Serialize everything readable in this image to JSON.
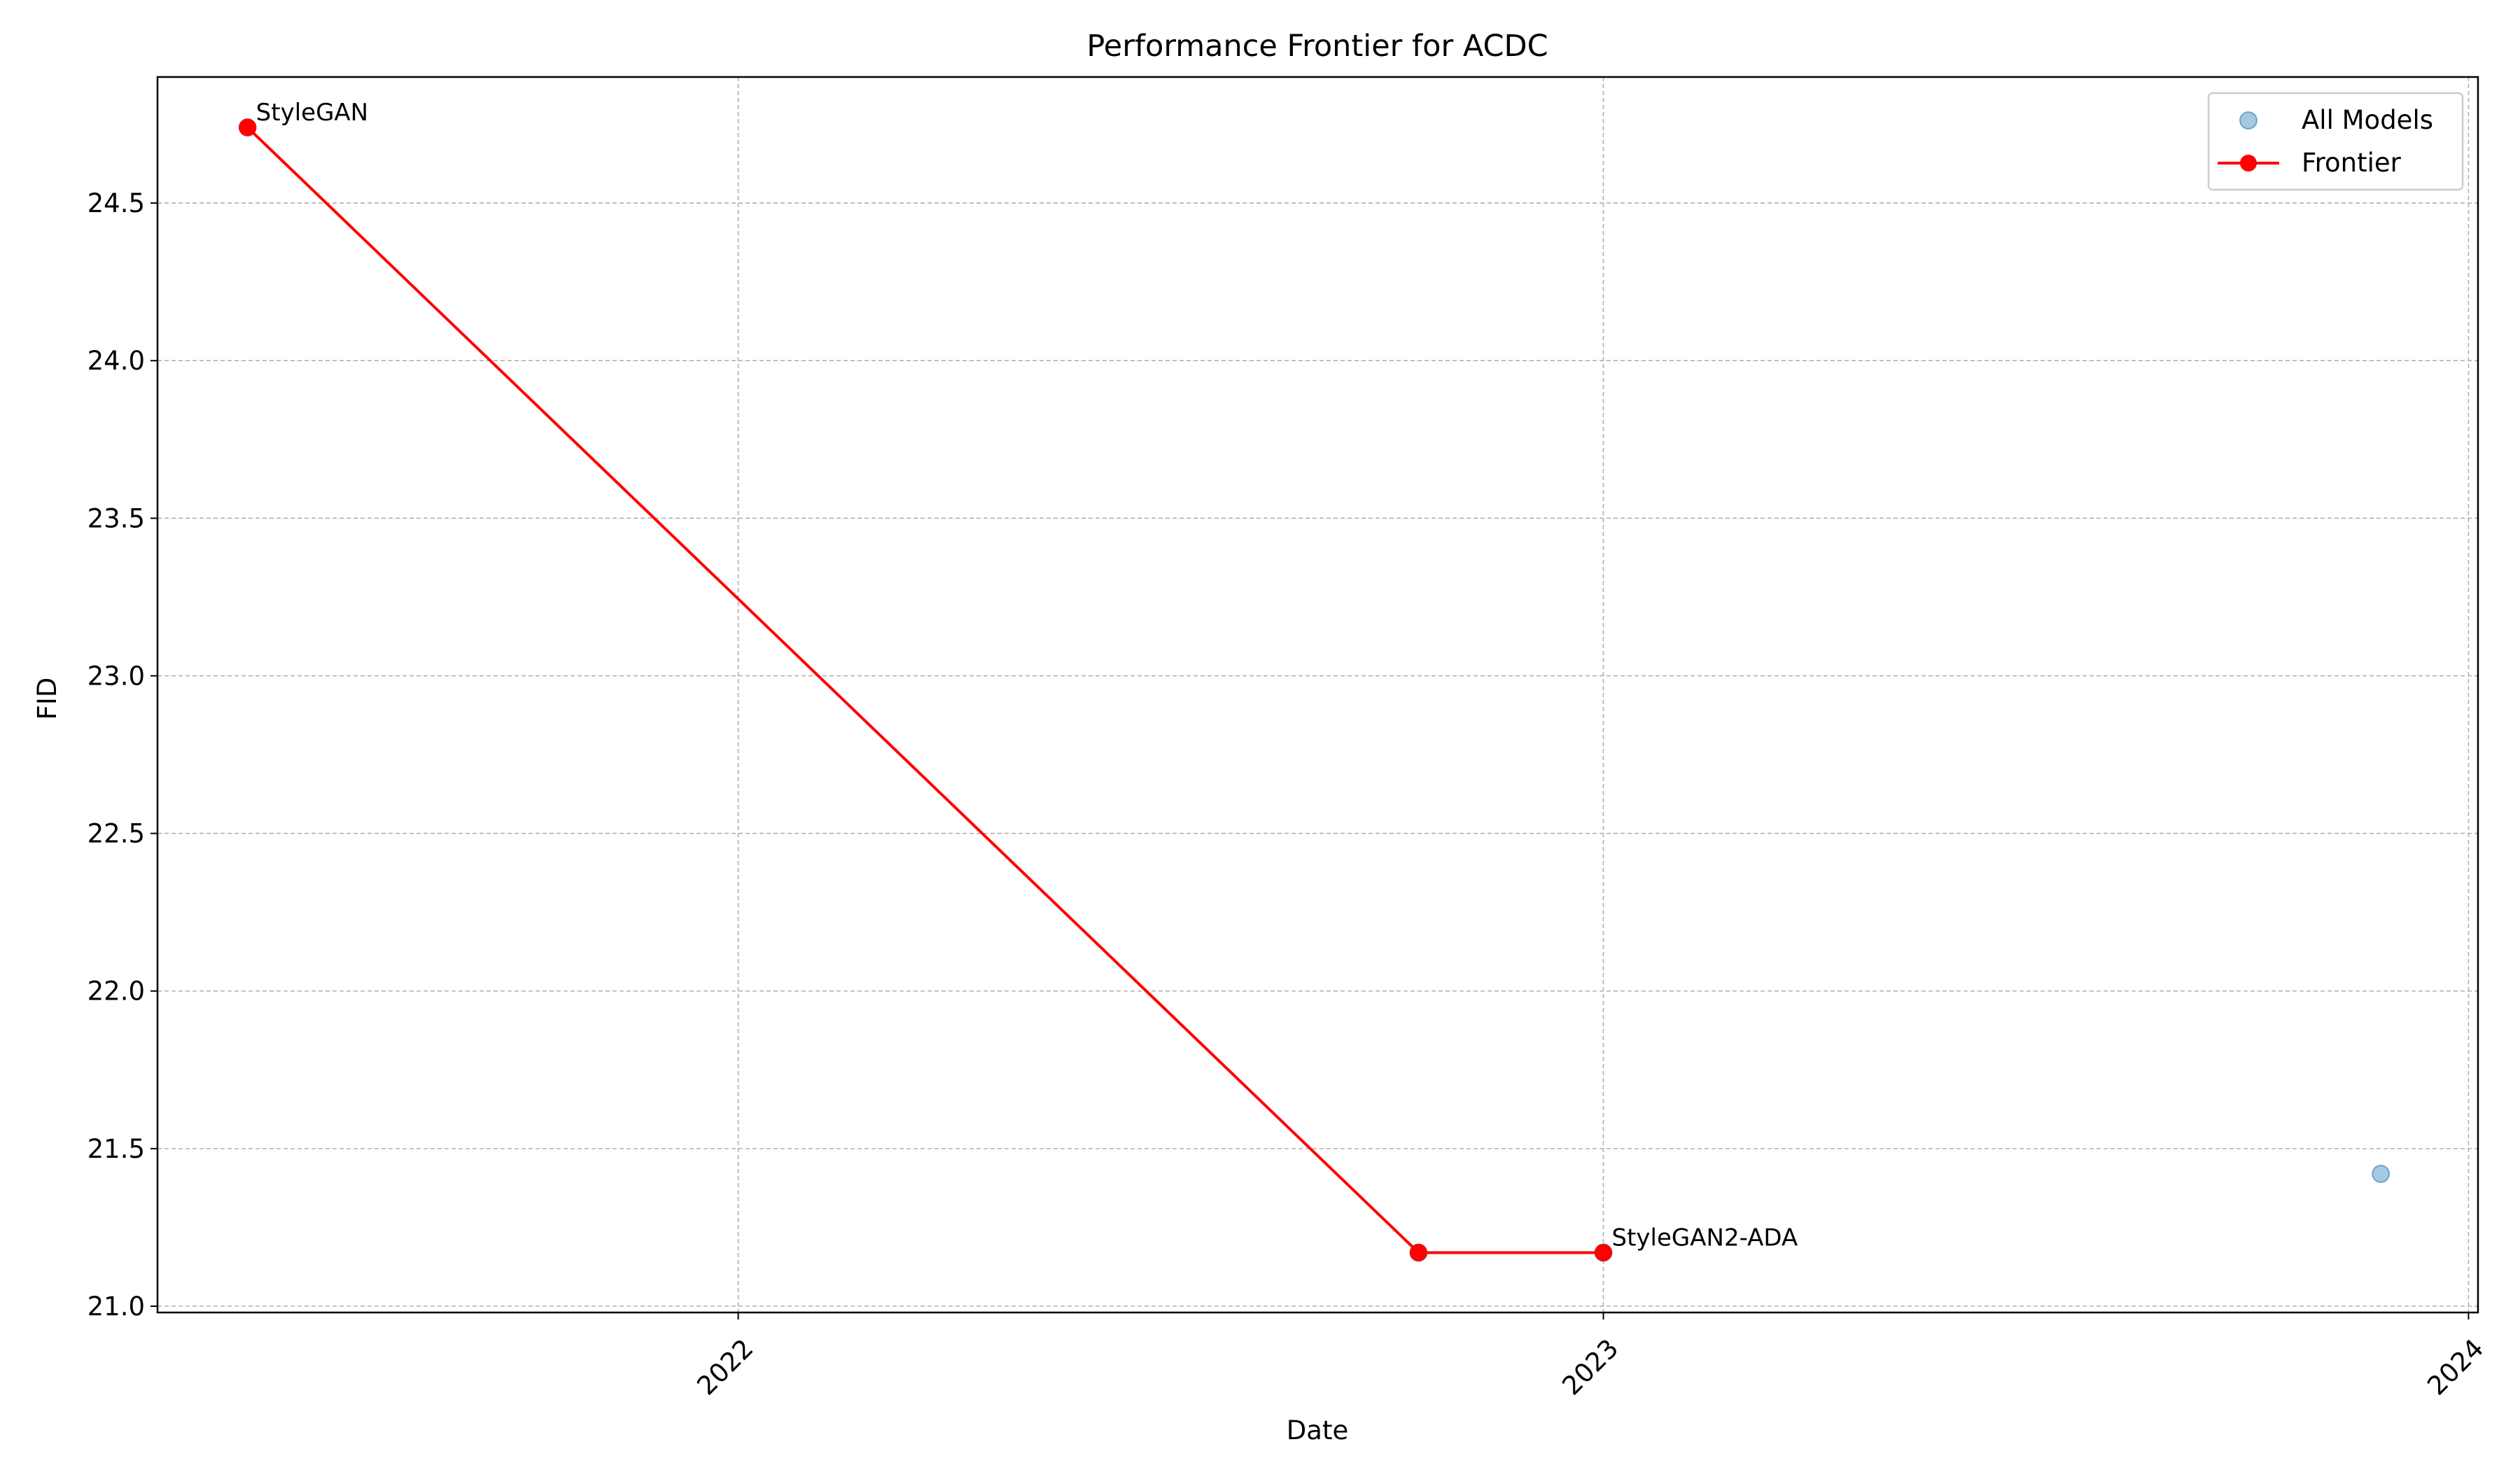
{
  "chart_data": {
    "type": "line",
    "title": "Performance Frontier for ACDC",
    "xlabel": "Date",
    "ylabel": "FID",
    "x_axis_type": "date",
    "xlim": [
      "2021-05-01",
      "2024-01-05"
    ],
    "ylim": [
      20.98,
      24.9
    ],
    "x_ticks": [
      {
        "date": "2022-01-01",
        "label": "2022"
      },
      {
        "date": "2023-01-01",
        "label": "2023"
      },
      {
        "date": "2024-01-01",
        "label": "2024"
      }
    ],
    "y_ticks": [
      21.0,
      21.5,
      22.0,
      22.5,
      23.0,
      23.5,
      24.0,
      24.5
    ],
    "y_tick_labels": [
      "21.0",
      "21.5",
      "22.0",
      "22.5",
      "23.0",
      "23.5",
      "24.0",
      "24.5"
    ],
    "grid": true,
    "legend_position": "top-right",
    "series": [
      {
        "name": "All Models",
        "kind": "scatter",
        "color": "#1f77b4",
        "points": [
          {
            "x": "2021-06-08",
            "y": 24.74
          },
          {
            "x": "2022-10-15",
            "y": 21.17
          },
          {
            "x": "2023-01-01",
            "y": 21.17
          },
          {
            "x": "2023-11-25",
            "y": 21.42
          }
        ]
      },
      {
        "name": "Frontier",
        "kind": "line",
        "color": "#ff0000",
        "points": [
          {
            "x": "2021-06-08",
            "y": 24.74
          },
          {
            "x": "2022-10-15",
            "y": 21.17
          },
          {
            "x": "2023-01-01",
            "y": 21.17
          }
        ]
      }
    ],
    "annotations": [
      {
        "text": "StyleGAN",
        "x": "2021-06-08",
        "y": 24.74
      },
      {
        "text": "StyleGAN2-ADA",
        "x": "2023-01-01",
        "y": 21.17
      }
    ]
  }
}
